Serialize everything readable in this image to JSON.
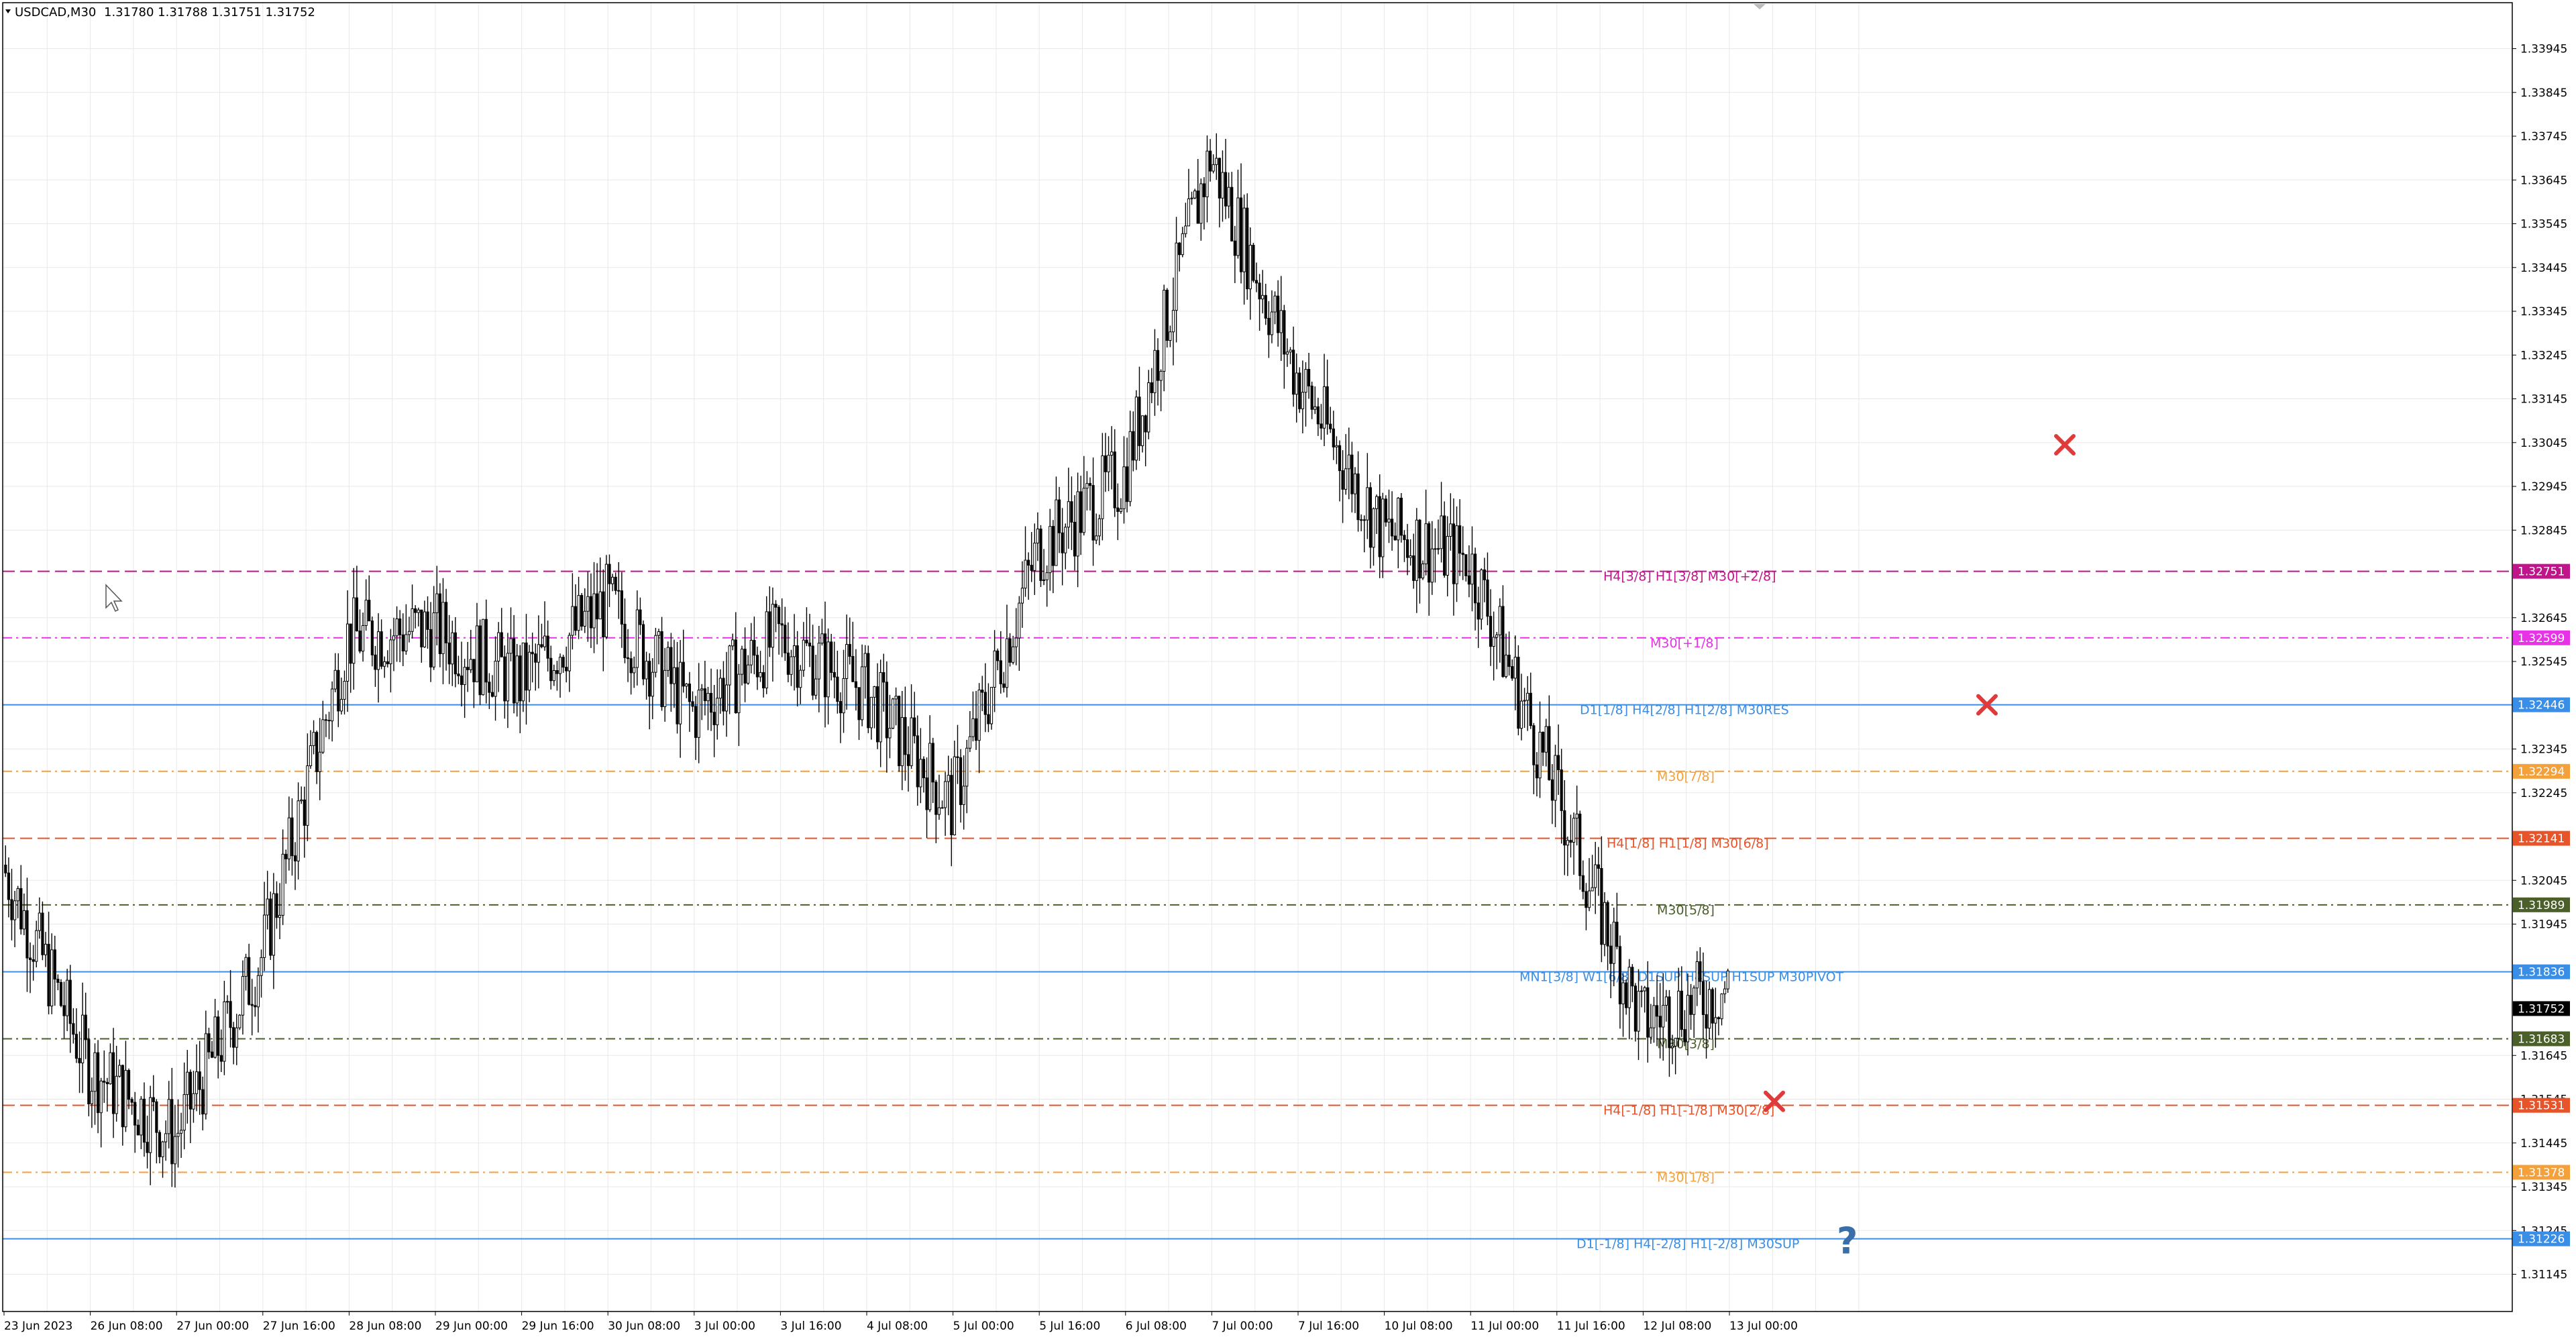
{
  "header": {
    "symbol_info": "USDCAD,M30",
    "ohlc": "1.31780 1.31788 1.31751 1.31752"
  },
  "colors": {
    "background": "#ffffff",
    "grid": "#e8e8e8",
    "axis": "#000000",
    "candle": "#000000",
    "magenta": "#c0158a",
    "pink": "#e533e5",
    "blue": "#3a8ee6",
    "orange": "#f4a13c",
    "red_orange": "#e8542a",
    "olive": "#4b5f2a",
    "cross": "#e03b3b",
    "question": "#3a6ea8"
  },
  "chart_data": {
    "type": "candlestick",
    "title": "USDCAD,M30",
    "ylim": [
      1.3106,
      1.3405
    ],
    "grid": true,
    "y_ticks": [
      "1.33945",
      "1.33845",
      "1.33745",
      "1.33645",
      "1.33545",
      "1.33445",
      "1.33345",
      "1.33245",
      "1.33145",
      "1.33045",
      "1.32945",
      "1.32845",
      "1.32645",
      "1.32545",
      "1.32345",
      "1.32245",
      "1.32045",
      "1.31945",
      "1.31645",
      "1.31545",
      "1.31445",
      "1.31345",
      "1.31245",
      "1.31145"
    ],
    "x_ticks": [
      "23 Jun 2023",
      "26 Jun 08:00",
      "27 Jun 00:00",
      "27 Jun 16:00",
      "28 Jun 08:00",
      "29 Jun 00:00",
      "29 Jun 16:00",
      "30 Jun 08:00",
      "3 Jul 00:00",
      "3 Jul 16:00",
      "4 Jul 08:00",
      "5 Jul 00:00",
      "5 Jul 16:00",
      "6 Jul 08:00",
      "7 Jul 00:00",
      "7 Jul 16:00",
      "10 Jul 08:00",
      "11 Jul 00:00",
      "11 Jul 16:00",
      "12 Jul 08:00",
      "13 Jul 00:00"
    ],
    "price_path": [
      {
        "x": "23 Jun 2023",
        "y": 1.3208
      },
      {
        "x": "26 Jun 08:00",
        "y": 1.3162
      },
      {
        "x": "27 Jun 00:00",
        "y": 1.3146
      },
      {
        "x": "27 Jun 16:00",
        "y": 1.3187
      },
      {
        "x": "28 Jun 08:00",
        "y": 1.326
      },
      {
        "x": "29 Jun 00:00",
        "y": 1.3262
      },
      {
        "x": "29 Jun 16:00",
        "y": 1.325
      },
      {
        "x": "30 Jun 08:00",
        "y": 1.3268
      },
      {
        "x": "3 Jul 00:00",
        "y": 1.3243
      },
      {
        "x": "3 Jul 16:00",
        "y": 1.326
      },
      {
        "x": "4 Jul 08:00",
        "y": 1.3248
      },
      {
        "x": "5 Jul 00:00",
        "y": 1.3222
      },
      {
        "x": "5 Jul 16:00",
        "y": 1.328
      },
      {
        "x": "6 Jul 08:00",
        "y": 1.3297
      },
      {
        "x": "7 Jul 00:00",
        "y": 1.337
      },
      {
        "x": "7 Jul 16:00",
        "y": 1.332
      },
      {
        "x": "10 Jul 08:00",
        "y": 1.3284
      },
      {
        "x": "11 Jul 00:00",
        "y": 1.3278
      },
      {
        "x": "11 Jul 16:00",
        "y": 1.3225
      },
      {
        "x": "12 Jul 08:00",
        "y": 1.3172
      },
      {
        "x": "13 Jul 00:00",
        "y": 1.318
      }
    ],
    "levels": [
      {
        "price": 1.32751,
        "label": "H4[3/8] H1[3/8] M30[+2/8]",
        "price_label": "1.32751",
        "color": "#c0158a",
        "style": "dash"
      },
      {
        "price": 1.32599,
        "label": "M30[+1/8]",
        "price_label": "1.32599",
        "color": "#e533e5",
        "style": "dashdot"
      },
      {
        "price": 1.32446,
        "label": "D1[1/8] H4[2/8] H1[2/8] M30RES",
        "price_label": "1.32446",
        "color": "#3a8ee6",
        "style": "solid"
      },
      {
        "price": 1.32294,
        "label": "M30[7/8]",
        "price_label": "1.32294",
        "color": "#f4a13c",
        "style": "dashdot"
      },
      {
        "price": 1.32141,
        "label": "H4[1/8] H1[1/8] M30[6/8]",
        "price_label": "1.32141",
        "color": "#e8542a",
        "style": "dash"
      },
      {
        "price": 1.31989,
        "label": "M30[5/8]",
        "price_label": "1.31989",
        "color": "#4b5f2a",
        "style": "dashdot"
      },
      {
        "price": 1.31836,
        "label": "MN1[3/8] W1[6/8] D1SUP H4SUP H1SUP M30PIVOT",
        "price_label": "1.31836",
        "color": "#3a8ee6",
        "style": "solid"
      },
      {
        "price": 1.31683,
        "label": "M30[3/8]",
        "price_label": "1.31683",
        "color": "#4b5f2a",
        "style": "dashdot"
      },
      {
        "price": 1.31531,
        "label": "H4[-1/8] H1[-1/8] M30[2/8]",
        "price_label": "1.31531",
        "color": "#e8542a",
        "style": "dash"
      },
      {
        "price": 1.31378,
        "label": "M30[1/8]",
        "price_label": "1.31378",
        "color": "#f4a13c",
        "style": "dashdot"
      },
      {
        "price": 1.31226,
        "label": "D1[-1/8] H4[-2/8] H1[-2/8] M30SUP",
        "price_label": "1.31226",
        "color": "#3a8ee6",
        "style": "solid"
      }
    ],
    "current_price": {
      "label": "1.31752",
      "color": "#000000"
    },
    "markers": [
      {
        "type": "cross",
        "x": "13 Jul 00:00",
        "y": 1.3154,
        "color": "#e03b3b"
      },
      {
        "type": "cross",
        "x": "after 13 Jul 00:00",
        "y": 1.32446,
        "color": "#e03b3b"
      },
      {
        "type": "cross",
        "x": "after 13 Jul 00:00",
        "y": 1.3304,
        "color": "#e03b3b"
      },
      {
        "type": "question",
        "x": "after 13 Jul 00:00",
        "y": 1.3122,
        "color": "#3a6ea8"
      }
    ]
  }
}
